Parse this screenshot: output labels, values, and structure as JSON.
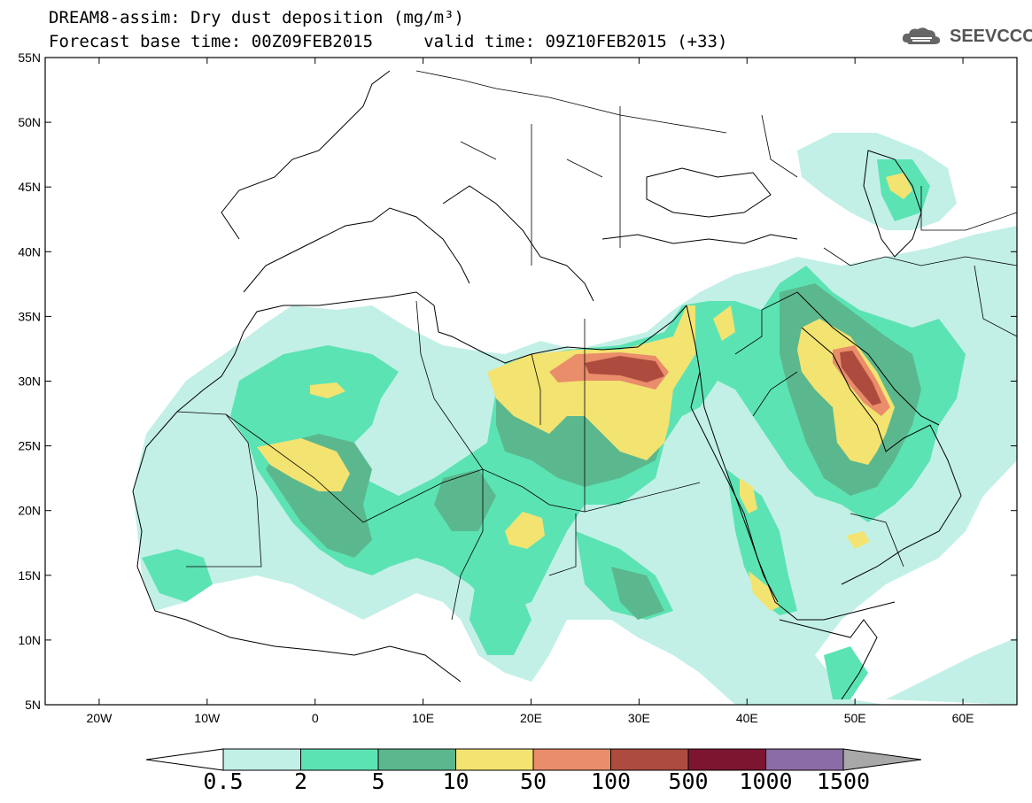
{
  "header": {
    "title_line1": "DREAM8-assim: Dry dust deposition (mg/m³)",
    "title_line2": "Forecast base time: 00Z09FEB2015     valid time: 09Z10FEB2015 (+33)",
    "logo_text": "SEEVCCC"
  },
  "map": {
    "lon_range": [
      -25,
      65
    ],
    "lat_range": [
      5,
      55
    ],
    "lat_ticks": [
      {
        "value": 55,
        "label": "55N"
      },
      {
        "value": 50,
        "label": "50N"
      },
      {
        "value": 45,
        "label": "45N"
      },
      {
        "value": 40,
        "label": "40N"
      },
      {
        "value": 35,
        "label": "35N"
      },
      {
        "value": 30,
        "label": "30N"
      },
      {
        "value": 25,
        "label": "25N"
      },
      {
        "value": 20,
        "label": "20N"
      },
      {
        "value": 15,
        "label": "15N"
      },
      {
        "value": 10,
        "label": "10N"
      },
      {
        "value": 5,
        "label": "5N"
      }
    ],
    "lon_ticks": [
      {
        "value": -20,
        "label": "20W"
      },
      {
        "value": -10,
        "label": "10W"
      },
      {
        "value": 0,
        "label": "0"
      },
      {
        "value": 10,
        "label": "10E"
      },
      {
        "value": 20,
        "label": "20E"
      },
      {
        "value": 30,
        "label": "30E"
      },
      {
        "value": 40,
        "label": "40E"
      },
      {
        "value": 50,
        "label": "50E"
      },
      {
        "value": 60,
        "label": "60E"
      }
    ]
  },
  "colorbar": {
    "labels": [
      "0.5",
      "2",
      "5",
      "10",
      "50",
      "100",
      "500",
      "1000",
      "1500"
    ],
    "colors": [
      "#c2f0e6",
      "#5ce3b4",
      "#5bb88e",
      "#f3e371",
      "#e98d6a",
      "#ae4b3f",
      "#7d1530",
      "#8c6ca6",
      "#a8a8a8"
    ]
  }
}
